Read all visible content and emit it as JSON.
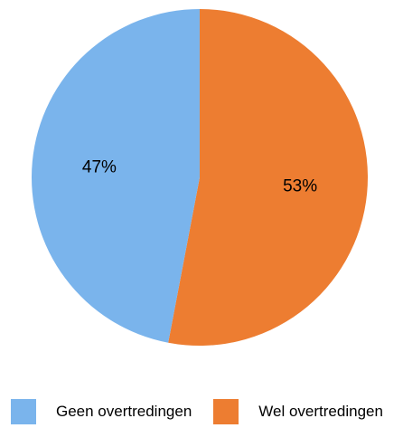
{
  "chart_data": {
    "type": "pie",
    "slices": [
      {
        "name": "Wel overtredingen",
        "value": 53,
        "label": "53%",
        "color": "#ED7D31"
      },
      {
        "name": "Geen overtredingen",
        "value": 47,
        "label": "47%",
        "color": "#7AB4EC"
      }
    ],
    "start": "top",
    "direction": "clockwise",
    "legend_position": "bottom"
  },
  "legend": {
    "items": [
      {
        "label": "Geen overtredingen",
        "color": "#7AB4EC"
      },
      {
        "label": "Wel overtredingen",
        "color": "#ED7D31"
      }
    ]
  }
}
